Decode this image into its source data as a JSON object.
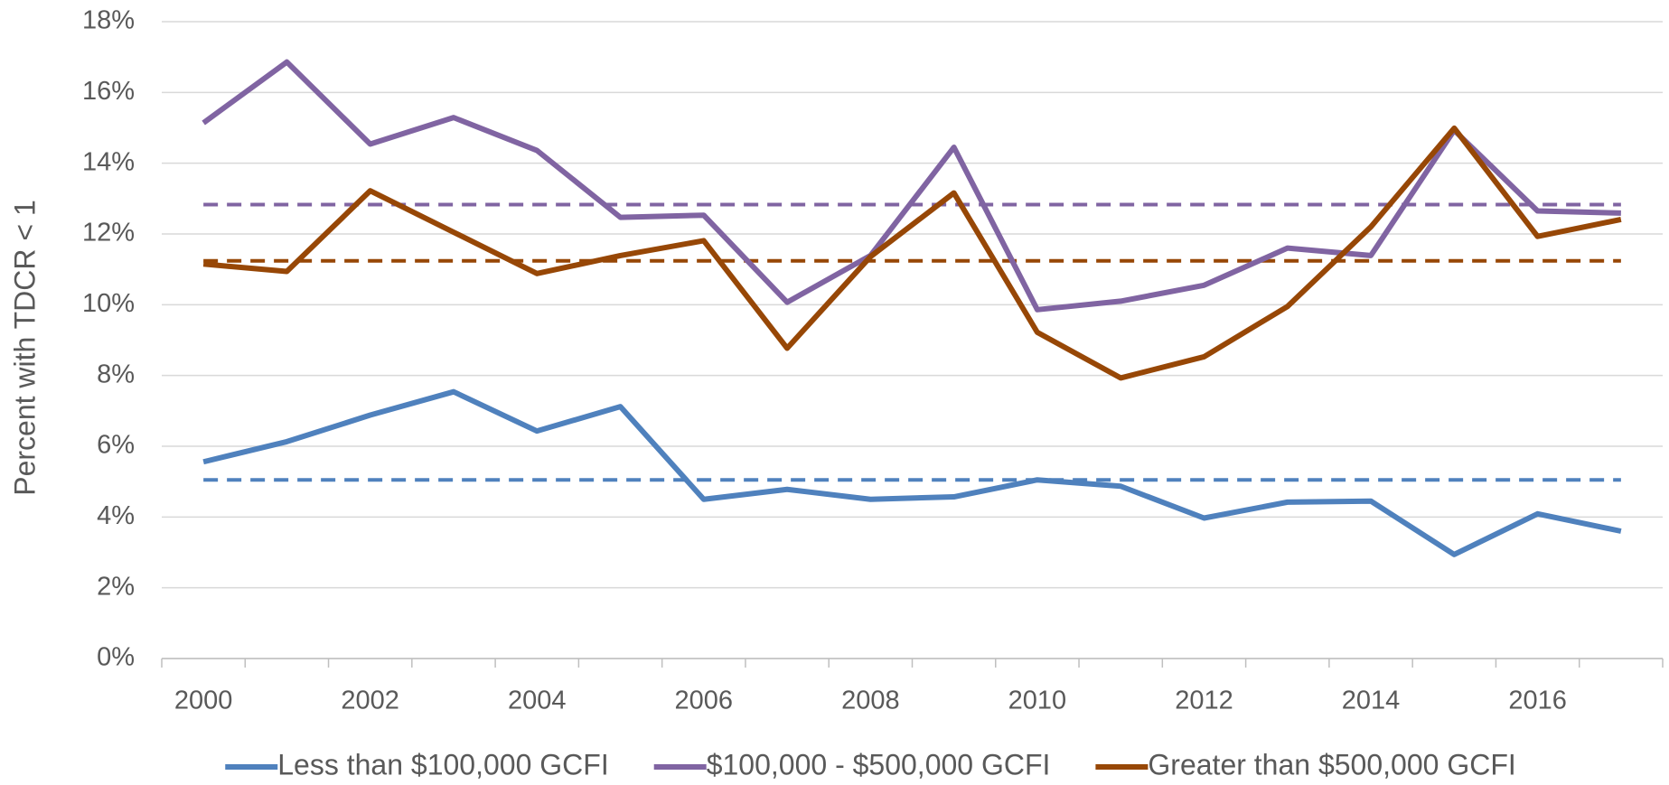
{
  "chart_data": {
    "type": "line",
    "y_axis_label": "Percent with TDCR < 1",
    "categories": [
      "2000",
      null,
      "2002",
      null,
      "2004",
      null,
      "2006",
      null,
      "2008",
      null,
      "2010",
      null,
      "2012",
      null,
      "2014",
      null,
      "2016",
      null
    ],
    "series": [
      {
        "name": "Less than $100,000 GCFI",
        "color": "#4f81bd",
        "values": [
          5.56,
          6.13,
          6.88,
          7.54,
          6.43,
          7.12,
          4.5,
          4.78,
          4.5,
          4.57,
          5.05,
          4.87,
          3.97,
          4.42,
          4.45,
          2.94,
          4.09,
          3.6
        ]
      },
      {
        "name": "$100,000 - $500,000 GCFI",
        "color": "#8064a2",
        "values": [
          15.14,
          16.86,
          14.54,
          15.29,
          14.36,
          12.47,
          12.53,
          10.07,
          11.39,
          14.45,
          9.86,
          10.1,
          10.55,
          11.6,
          11.39,
          14.93,
          12.65,
          12.59
        ]
      },
      {
        "name": "Greater than $500,000 GCFI",
        "color": "#974706",
        "values": [
          11.15,
          10.94,
          13.22,
          12.05,
          10.88,
          11.39,
          11.81,
          8.77,
          11.36,
          13.16,
          9.22,
          7.93,
          8.53,
          9.95,
          12.2,
          14.99,
          11.93,
          12.41
        ]
      }
    ],
    "reference_lines": [
      {
        "value": 5.05,
        "color": "#4f81bd",
        "dashed": true
      },
      {
        "value": 12.83,
        "color": "#8064a2",
        "dashed": true
      },
      {
        "value": 11.24,
        "color": "#974706",
        "dashed": true
      }
    ],
    "ylim": [
      0,
      18
    ],
    "yticks": [
      {
        "value": 0,
        "label": "0%"
      },
      {
        "value": 2,
        "label": "2%"
      },
      {
        "value": 4,
        "label": "4%"
      },
      {
        "value": 6,
        "label": "6%"
      },
      {
        "value": 8,
        "label": "8%"
      },
      {
        "value": 10,
        "label": "10%"
      },
      {
        "value": 12,
        "label": "12%"
      },
      {
        "value": 14,
        "label": "14%"
      },
      {
        "value": 16,
        "label": "16%"
      },
      {
        "value": 18,
        "label": "18%"
      }
    ],
    "grid": true,
    "legend": "bottom"
  }
}
